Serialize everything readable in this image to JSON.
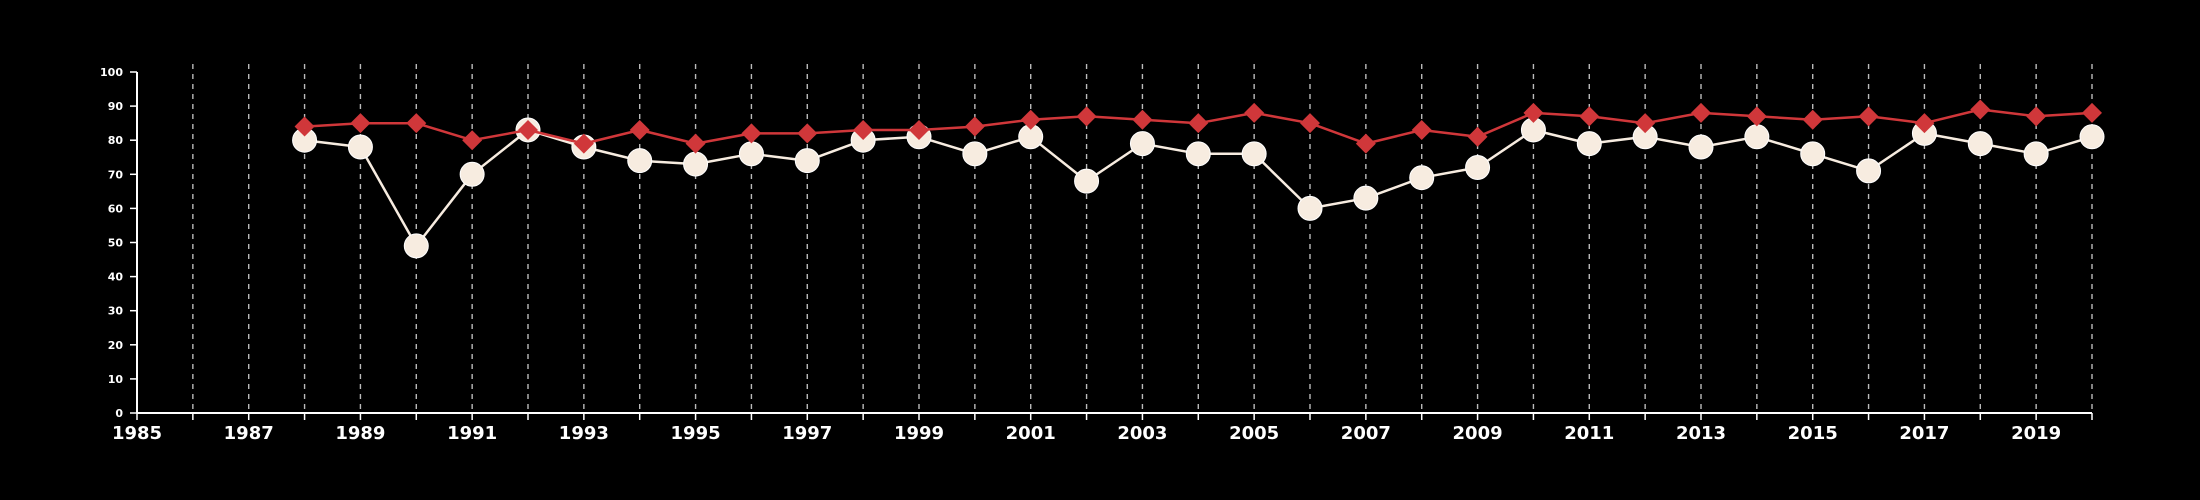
{
  "chart_data": {
    "type": "line",
    "title": "",
    "xlabel": "",
    "ylabel": "",
    "xlim": [
      1985,
      2020
    ],
    "ylim": [
      0,
      100
    ],
    "y_ticks": [
      0,
      10,
      20,
      30,
      40,
      50,
      60,
      70,
      80,
      90,
      100
    ],
    "x_tick_labels": [
      1985,
      1987,
      1989,
      1991,
      1993,
      1995,
      1997,
      1999,
      2001,
      2003,
      2005,
      2007,
      2009,
      2011,
      2013,
      2015,
      2017,
      2019
    ],
    "vertical_grid": "dashed, every year",
    "legend": "none",
    "x": [
      1988,
      1989,
      1990,
      1991,
      1992,
      1993,
      1994,
      1995,
      1996,
      1997,
      1998,
      1999,
      2000,
      2001,
      2002,
      2003,
      2004,
      2005,
      2006,
      2007,
      2008,
      2009,
      2010,
      2011,
      2012,
      2013,
      2014,
      2015,
      2016,
      2017,
      2018,
      2019,
      2020
    ],
    "series": [
      {
        "marker": "diamond",
        "color": "#d0373a",
        "values": [
          84,
          85,
          85,
          80,
          83,
          79,
          83,
          79,
          82,
          82,
          83,
          83,
          84,
          86,
          87,
          86,
          85,
          88,
          85,
          79,
          83,
          81,
          88,
          87,
          85,
          88,
          87,
          86,
          87,
          85,
          89,
          87,
          88
        ]
      },
      {
        "marker": "circle",
        "color": "#f7ece0",
        "values": [
          80,
          78,
          49,
          70,
          83,
          78,
          74,
          73,
          76,
          74,
          80,
          81,
          76,
          81,
          68,
          79,
          76,
          76,
          60,
          63,
          69,
          72,
          83,
          79,
          81,
          78,
          81,
          76,
          71,
          82,
          79,
          76,
          81
        ]
      }
    ]
  }
}
